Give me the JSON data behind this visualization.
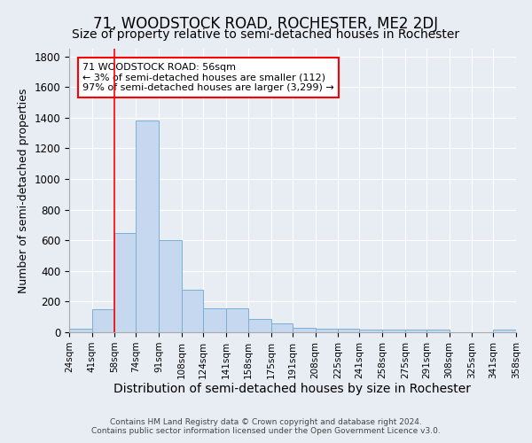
{
  "title": "71, WOODSTOCK ROAD, ROCHESTER, ME2 2DJ",
  "subtitle": "Size of property relative to semi-detached houses in Rochester",
  "xlabel": "Distribution of semi-detached houses by size in Rochester",
  "ylabel": "Number of semi-detached properties",
  "footer_line1": "Contains HM Land Registry data © Crown copyright and database right 2024.",
  "footer_line2": "Contains public sector information licensed under the Open Government Licence v3.0.",
  "annotation_title": "71 WOODSTOCK ROAD: 56sqm",
  "annotation_line1": "← 3% of semi-detached houses are smaller (112)",
  "annotation_line2": "97% of semi-detached houses are larger (3,299) →",
  "property_size": 56,
  "bin_edges": [
    24,
    41,
    58,
    74,
    91,
    108,
    124,
    141,
    158,
    175,
    191,
    208,
    225,
    241,
    258,
    275,
    291,
    308,
    325,
    341,
    358
  ],
  "bar_heights": [
    25,
    150,
    650,
    1380,
    600,
    275,
    155,
    155,
    85,
    55,
    30,
    25,
    25,
    20,
    15,
    15,
    15,
    0,
    0,
    20
  ],
  "bar_color": "#c5d8ef",
  "bar_edge_color": "#7aafd4",
  "red_line_x": 58,
  "ylim": [
    0,
    1850
  ],
  "yticks": [
    0,
    200,
    400,
    600,
    800,
    1000,
    1200,
    1400,
    1600,
    1800
  ],
  "background_color": "#e8edf4",
  "plot_bg_color": "#e8edf4",
  "grid_color": "#ffffff",
  "title_fontsize": 12,
  "subtitle_fontsize": 10,
  "tick_fontsize": 7.5,
  "ylabel_fontsize": 9,
  "xlabel_fontsize": 10,
  "footer_fontsize": 6.5
}
